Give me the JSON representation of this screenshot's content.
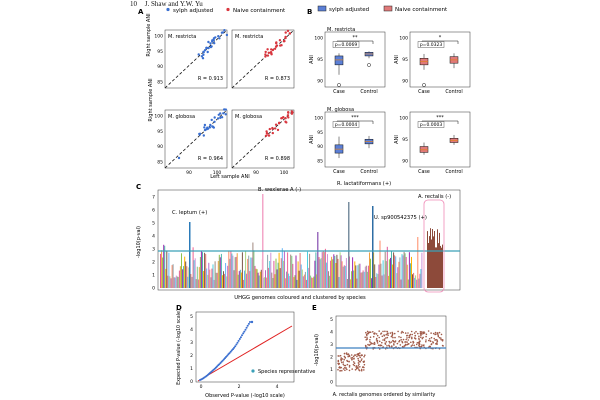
{
  "header": {
    "page_number": "10",
    "running_head": "J. Shaw and Y.W. Yu"
  },
  "colors": {
    "sylph": "#3a6fd0",
    "naive": "#d9363e",
    "box_blue": "#5b7fd6",
    "box_red": "#e07a7a",
    "rect_blue": "#4a78c9",
    "manhattan_line": "#3aa0b8",
    "qq_line": "#e02020",
    "e_points": "#a05a48",
    "e_line": "#3f80c0"
  },
  "panel_a": {
    "label": "A",
    "legend": [
      "sylph adjusted",
      "Naive containment"
    ],
    "ylabel": "Right sample ANI",
    "xlabel": "Left sample ANI",
    "subplots": [
      {
        "species": "M. restricta",
        "r": "R = 0.913",
        "color": "sylph"
      },
      {
        "species": "M. restricta",
        "r": "R = 0.873",
        "color": "naive"
      },
      {
        "species": "M. globosa",
        "r": "R = 0.964",
        "color": "sylph"
      },
      {
        "species": "M. globosa",
        "r": "R = 0.898",
        "color": "naive"
      }
    ],
    "yticks": [
      "100",
      "95",
      "90",
      "85"
    ],
    "xticks": [
      "90",
      "100"
    ]
  },
  "panel_b": {
    "label": "B",
    "legend": [
      "sylph adjusted",
      "Naive containment"
    ],
    "ylabel": "ANI",
    "categories": [
      "Case",
      "Control"
    ],
    "subplots": [
      {
        "species": "M. restricta",
        "p": "p=0.0069",
        "stars": "**",
        "yticks": [
          "100",
          "95",
          "90"
        ]
      },
      {
        "species": "",
        "p": "p=0.0323",
        "stars": "*",
        "yticks": [
          "100",
          "95",
          "90"
        ]
      },
      {
        "species": "M. globosa",
        "p": "p=0.0004",
        "stars": "***",
        "yticks": [
          "100",
          "95",
          "90",
          "85"
        ]
      },
      {
        "species": "",
        "p": "p=0.0003",
        "stars": "***",
        "yticks": [
          "100",
          "95",
          "90"
        ]
      }
    ]
  },
  "panel_c": {
    "label": "C",
    "ylabel": "-log10(p-val)",
    "xlabel": "UHGG genomes coloured and clustered by species",
    "yticks": [
      "7",
      "6",
      "5",
      "4",
      "3",
      "2",
      "1",
      "0"
    ],
    "annotations": [
      "B. wexlerae A (-)",
      "R. lactatiformans (+)",
      "C. leptum (+)",
      "U. sp900542375 (+)",
      "A. rectalis (-)"
    ]
  },
  "panel_d": {
    "label": "D",
    "ylabel": "Expected P-value (-log10 scale)",
    "xlabel": "Observed P-value (-log10 scale)",
    "legend": "Species representative",
    "xticks": [
      "0",
      "2",
      "4"
    ],
    "yticks": [
      "0",
      "1",
      "2",
      "3",
      "4",
      "5"
    ]
  },
  "panel_e": {
    "label": "E",
    "ylabel": "-log10(p-val)",
    "xlabel": "A. rectalis genomes ordered by similarity",
    "yticks": [
      "5",
      "4",
      "3",
      "2",
      "1",
      "0"
    ]
  }
}
